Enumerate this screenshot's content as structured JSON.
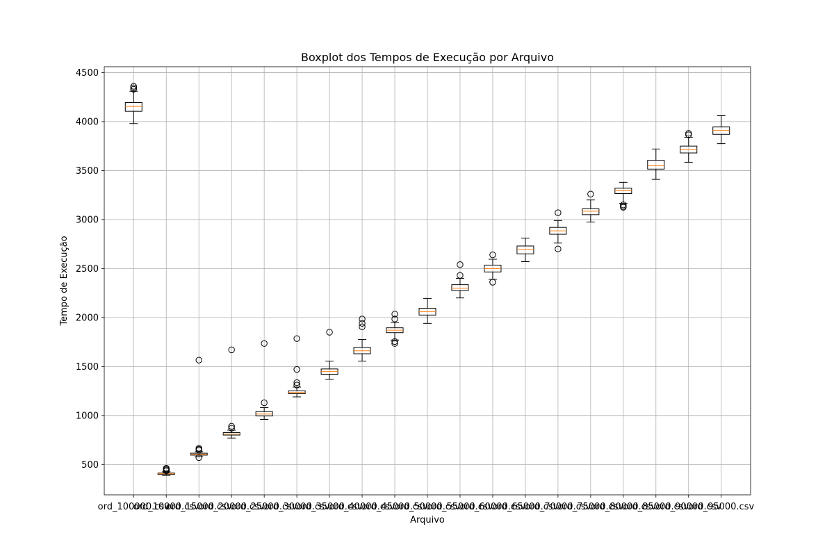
{
  "chart_data": {
    "type": "boxplot",
    "title": "Boxplot dos Tempos de Execução por Arquivo",
    "xlabel": "Arquivo",
    "ylabel": "Tempo de Execução",
    "ylim": [
      190,
      4560
    ],
    "yticks": [
      500,
      1000,
      1500,
      2000,
      2500,
      3000,
      3500,
      4000,
      4500
    ],
    "grid": true,
    "categories": [
      "ord_100000.csv",
      "ord_10000.csv",
      "ord_15000.csv",
      "ord_20000.csv",
      "ord_25000.csv",
      "ord_30000.csv",
      "ord_35000.csv",
      "ord_40000.csv",
      "ord_45000.csv",
      "ord_50000.csv",
      "ord_55000.csv",
      "ord_60000.csv",
      "ord_65000.csv",
      "ord_70000.csv",
      "ord_75000.csv",
      "ord_80000.csv",
      "ord_85000.csv",
      "ord_90000.csv",
      "ord_95000.csv"
    ],
    "boxes": [
      {
        "whislo": 3980,
        "q1": 4105,
        "med": 4155,
        "q3": 4195,
        "whishi": 4310,
        "fliers": [
          4330,
          4345,
          4360
        ]
      },
      {
        "whislo": 388,
        "q1": 398,
        "med": 405,
        "q3": 413,
        "whishi": 425,
        "fliers": [
          435,
          445,
          455,
          462
        ]
      },
      {
        "whislo": 580,
        "q1": 595,
        "med": 605,
        "q3": 615,
        "whishi": 630,
        "fliers": [
          570,
          645,
          655,
          665,
          1565
        ]
      },
      {
        "whislo": 770,
        "q1": 800,
        "med": 812,
        "q3": 825,
        "whishi": 850,
        "fliers": [
          870,
          890,
          1670
        ]
      },
      {
        "whislo": 960,
        "q1": 995,
        "med": 1015,
        "q3": 1040,
        "whishi": 1080,
        "fliers": [
          1130,
          1735
        ]
      },
      {
        "whislo": 1190,
        "q1": 1222,
        "med": 1235,
        "q3": 1252,
        "whishi": 1290,
        "fliers": [
          1310,
          1335,
          1470,
          1785
        ]
      },
      {
        "whislo": 1370,
        "q1": 1420,
        "med": 1450,
        "q3": 1475,
        "whishi": 1555,
        "fliers": [
          1850
        ]
      },
      {
        "whislo": 1555,
        "q1": 1630,
        "med": 1660,
        "q3": 1695,
        "whishi": 1775,
        "fliers": [
          1905,
          1940,
          1985
        ]
      },
      {
        "whislo": 1770,
        "q1": 1845,
        "med": 1870,
        "q3": 1895,
        "whishi": 1950,
        "fliers": [
          1735,
          1755,
          1985,
          2035
        ]
      },
      {
        "whislo": 1940,
        "q1": 2025,
        "med": 2060,
        "q3": 2095,
        "whishi": 2195,
        "fliers": []
      },
      {
        "whislo": 2200,
        "q1": 2275,
        "med": 2300,
        "q3": 2335,
        "whishi": 2400,
        "fliers": [
          2430,
          2540
        ]
      },
      {
        "whislo": 2390,
        "q1": 2465,
        "med": 2500,
        "q3": 2535,
        "whishi": 2595,
        "fliers": [
          2360,
          2640
        ]
      },
      {
        "whislo": 2570,
        "q1": 2650,
        "med": 2695,
        "q3": 2730,
        "whishi": 2810,
        "fliers": []
      },
      {
        "whislo": 2760,
        "q1": 2850,
        "med": 2885,
        "q3": 2920,
        "whishi": 2990,
        "fliers": [
          2700,
          3070
        ]
      },
      {
        "whislo": 2975,
        "q1": 3050,
        "med": 3085,
        "q3": 3110,
        "whishi": 3200,
        "fliers": [
          3260
        ]
      },
      {
        "whislo": 3165,
        "q1": 3265,
        "med": 3295,
        "q3": 3320,
        "whishi": 3380,
        "fliers": [
          3125,
          3135,
          3150
        ]
      },
      {
        "whislo": 3410,
        "q1": 3515,
        "med": 3550,
        "q3": 3605,
        "whishi": 3720,
        "fliers": []
      },
      {
        "whislo": 3585,
        "q1": 3680,
        "med": 3715,
        "q3": 3750,
        "whishi": 3840,
        "fliers": [
          3865,
          3880
        ]
      },
      {
        "whislo": 3775,
        "q1": 3870,
        "med": 3910,
        "q3": 3945,
        "whishi": 4060,
        "fliers": []
      }
    ],
    "colors": {
      "box": "#000000",
      "median": "#ff7f0e",
      "grid": "#b0b0b0"
    }
  }
}
